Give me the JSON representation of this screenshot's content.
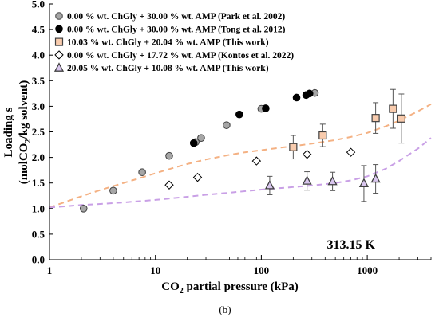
{
  "chart_data": {
    "type": "scatter",
    "xscale": "log",
    "xlim": [
      1,
      4000
    ],
    "ylim": [
      0.0,
      5.0
    ],
    "xticks": [
      "1",
      "10",
      "100",
      "1000"
    ],
    "yticks": [
      "0.0",
      "0.5",
      "1.0",
      "1.5",
      "2.0",
      "2.5",
      "3.0",
      "3.5",
      "4.0",
      "4.5",
      "5.0"
    ],
    "xlabel_parts": [
      "CO",
      "2",
      " partial pressure (kPa)"
    ],
    "ylabel_line1": "Loading s",
    "ylabel_line2_parts": [
      "(molCO",
      "2",
      "/kg solvent)"
    ],
    "annotation": "313.15 K",
    "panel_label": "(b)",
    "legend_position": "top-left",
    "grid": false,
    "series": [
      {
        "name": "0.00 % wt. ChGly + 30.00 % wt. AMP (Park et al. 2002)",
        "marker": "circle",
        "fill": "#a6a6a6",
        "stroke": "#404040",
        "x": [
          2.1,
          4,
          7.5,
          13.5,
          24,
          27,
          47,
          100,
          320
        ],
        "y": [
          1.0,
          1.35,
          1.71,
          2.03,
          2.3,
          2.38,
          2.63,
          2.95,
          3.26
        ]
      },
      {
        "name": "0.00 % wt. ChGly + 30.00 % wt. AMP (Tong et al. 2012)",
        "marker": "circle",
        "fill": "#000000",
        "stroke": "#000000",
        "x": [
          23,
          62,
          110,
          215,
          265,
          285
        ],
        "y": [
          2.28,
          2.84,
          2.96,
          3.17,
          3.22,
          3.25
        ]
      },
      {
        "name": "10.03 % wt. ChGly + 20.04 % wt. AMP (This work)",
        "marker": "square",
        "fill": "#f8cbad",
        "stroke": "#404040",
        "x": [
          200,
          380,
          1200,
          1750,
          2100
        ],
        "y": [
          2.2,
          2.43,
          2.77,
          2.95,
          2.76
        ],
        "error": [
          0.23,
          0.22,
          0.3,
          0.38,
          0.48
        ]
      },
      {
        "name": "0.00 % wt. ChGly + 17.72 % wt. AMP (Kontos et al. 2022)",
        "marker": "diamond",
        "fill": "#ffffff",
        "stroke": "#000000",
        "x": [
          13.5,
          25,
          90,
          270,
          700
        ],
        "y": [
          1.46,
          1.61,
          1.93,
          2.06,
          2.1
        ]
      },
      {
        "name": "20.05 % wt. ChGly + 10.08 % wt. AMP (This work)",
        "marker": "triangle",
        "fill": "#d9c6ee",
        "stroke": "#404040",
        "x": [
          120,
          270,
          470,
          930,
          1200
        ],
        "y": [
          1.45,
          1.54,
          1.53,
          1.49,
          1.58
        ],
        "error": [
          0.18,
          0.18,
          0.18,
          0.35,
          0.28
        ]
      }
    ],
    "model_curves": [
      {
        "color": "#f4b183",
        "x": [
          1,
          1.5,
          2,
          3,
          5,
          7,
          10,
          14,
          20,
          30,
          50,
          70,
          100,
          150,
          200,
          300,
          500,
          700,
          1000,
          1500,
          2000,
          3000,
          4000
        ],
        "y": [
          1.02,
          1.15,
          1.24,
          1.36,
          1.5,
          1.59,
          1.69,
          1.78,
          1.87,
          1.96,
          2.05,
          2.1,
          2.14,
          2.19,
          2.22,
          2.27,
          2.34,
          2.4,
          2.48,
          2.61,
          2.72,
          2.9,
          3.04
        ]
      },
      {
        "color": "#c9a0e6",
        "x": [
          1,
          2,
          3,
          5,
          10,
          20,
          30,
          50,
          100,
          200,
          300,
          500,
          700,
          1000,
          1500,
          2000,
          3000,
          4000
        ],
        "y": [
          1.02,
          1.07,
          1.09,
          1.12,
          1.17,
          1.23,
          1.27,
          1.31,
          1.37,
          1.42,
          1.45,
          1.5,
          1.55,
          1.63,
          1.78,
          1.93,
          2.17,
          2.38
        ]
      }
    ]
  }
}
